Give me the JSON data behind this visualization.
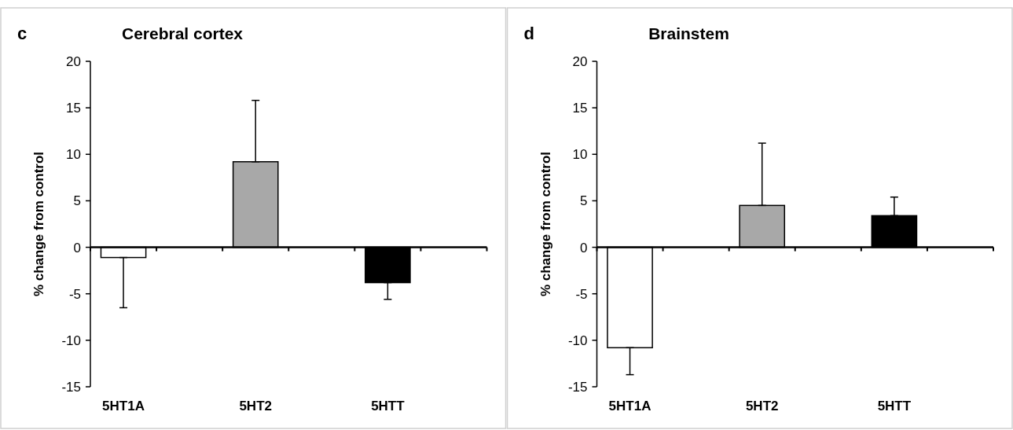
{
  "chart_data": [
    {
      "type": "bar",
      "title": "Cerebral cortex",
      "annotations": [
        "c"
      ],
      "ylabel": "% change from control",
      "categories": [
        "5HT1A",
        null,
        "5HT2",
        null,
        "5HTT",
        null
      ],
      "values": [
        -1.1,
        null,
        9.2,
        null,
        -3.8,
        null
      ],
      "colors": [
        "#ffffff",
        null,
        "#a8a8a8",
        null,
        "#000000",
        null
      ],
      "errors": [
        [
          -6.5,
          -1.1
        ],
        null,
        [
          9.2,
          15.8
        ],
        null,
        [
          -5.6,
          -3.8
        ],
        null
      ],
      "ylim": [
        -15,
        20
      ],
      "yticks": [
        -15,
        -10,
        -5,
        0,
        5,
        10,
        15,
        20
      ]
    },
    {
      "type": "bar",
      "title": "Brainstem",
      "annotations": [
        "d"
      ],
      "ylabel": "% change from control",
      "categories": [
        "5HT1A",
        null,
        "5HT2",
        null,
        "5HTT",
        null
      ],
      "values": [
        -10.8,
        null,
        4.5,
        null,
        3.4,
        null
      ],
      "colors": [
        "#ffffff",
        null,
        "#a8a8a8",
        null,
        "#000000",
        null
      ],
      "errors": [
        [
          -13.7,
          -10.8
        ],
        null,
        [
          4.5,
          11.2
        ],
        null,
        [
          3.4,
          5.4
        ],
        null
      ],
      "ylim": [
        -15,
        20
      ],
      "yticks": [
        -15,
        -10,
        -5,
        0,
        5,
        10,
        15,
        20
      ]
    }
  ]
}
